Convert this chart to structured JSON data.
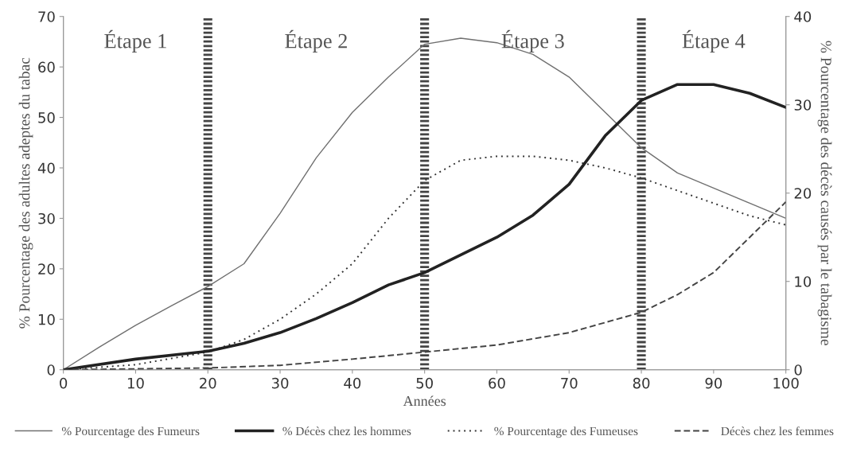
{
  "chart_data": {
    "type": "line",
    "xlabel": "Années",
    "ylabel": "% Pourcentage des adultes adeptes du tabac",
    "y2label": "% Pourcentage des décès causés par le tabagisme",
    "xlim": [
      0,
      100
    ],
    "xticks": [
      0,
      10,
      20,
      30,
      40,
      50,
      60,
      70,
      80,
      90,
      100
    ],
    "ylim": [
      0,
      70
    ],
    "yticks": [
      0,
      10,
      20,
      30,
      40,
      50,
      60,
      70
    ],
    "y2lim": [
      0,
      40
    ],
    "y2ticks": [
      0,
      10,
      20,
      30,
      40
    ],
    "grid": false,
    "legend": "bottom",
    "marker": "none",
    "series": [
      {
        "name": "% Pourcentage des Fumeurs",
        "color": "#707070",
        "line_style": "solid",
        "x": [
          0,
          5,
          10,
          15,
          20,
          25,
          30,
          35,
          40,
          45,
          50,
          55,
          60,
          65,
          70,
          75,
          80,
          85,
          90,
          95,
          100
        ],
        "values": [
          0,
          4.5,
          8.8,
          12.7,
          16.5,
          21,
          31,
          42,
          51,
          58,
          64.5,
          65.7,
          64.8,
          62.5,
          58,
          51,
          44,
          39,
          36,
          33,
          30
        ]
      },
      {
        "name": "% Décès chez les hommes",
        "color": "#222222",
        "line_style": "solid",
        "axis": "y2",
        "x": [
          0,
          10,
          20,
          25,
          30,
          35,
          40,
          45,
          50,
          55,
          60,
          65,
          70,
          75,
          80,
          85,
          90,
          95,
          100
        ],
        "values": [
          0,
          1.2,
          2.1,
          3,
          4.2,
          5.8,
          7.6,
          9.6,
          11,
          13,
          15,
          17.5,
          21,
          26.5,
          30.5,
          32.3,
          32.3,
          31.3,
          29.7
        ]
      },
      {
        "name": "% Pourcentage des Fumeuses",
        "color": "#333333",
        "line_style": "dotted",
        "x": [
          0,
          10,
          20,
          25,
          30,
          35,
          40,
          45,
          50,
          55,
          60,
          65,
          70,
          75,
          80,
          85,
          90,
          95,
          100
        ],
        "values": [
          0,
          1,
          3.5,
          6,
          10,
          15,
          21,
          30,
          37.5,
          41.5,
          42.3,
          42.3,
          41.5,
          40,
          38,
          35.5,
          33,
          30.5,
          28.7
        ]
      },
      {
        "name": "Décès chez les femmes",
        "color": "#444444",
        "line_style": "dashed",
        "axis": "y2",
        "x": [
          0,
          10,
          20,
          30,
          40,
          50,
          60,
          70,
          80,
          85,
          90,
          95,
          100
        ],
        "values": [
          0,
          0.1,
          0.2,
          0.5,
          1.2,
          2,
          2.8,
          4.2,
          6.5,
          8.5,
          11,
          15,
          19
        ]
      }
    ],
    "ref_lines": [
      {
        "axis": "x",
        "value": 20,
        "color": "#444444",
        "line_style": "dotted"
      },
      {
        "axis": "x",
        "value": 50,
        "color": "#444444",
        "line_style": "dotted"
      },
      {
        "axis": "x",
        "value": 80,
        "color": "#444444",
        "line_style": "dotted"
      }
    ],
    "annotations": [
      "Étape 1",
      "Étape 2",
      "Étape 3",
      "Étape 4"
    ]
  }
}
